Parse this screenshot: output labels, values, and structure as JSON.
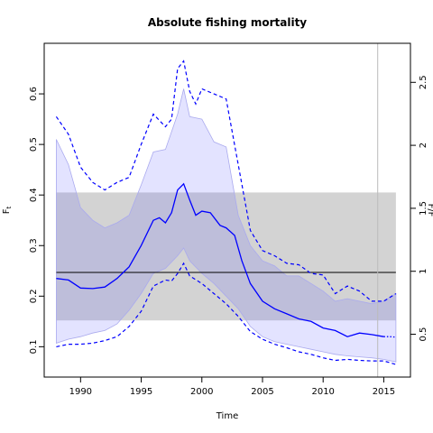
{
  "chart_data": {
    "type": "line",
    "title": "Absolute fishing mortality",
    "xlabel": "Time",
    "ylabel": "F",
    "ylabel_sub": "t",
    "y2label": "F/F",
    "xlim": [
      1987,
      2017.2
    ],
    "ylim": [
      0.04,
      0.7
    ],
    "y2lim": [
      0.16,
      2.81
    ],
    "x_ticks": [
      1990,
      1995,
      2000,
      2005,
      2010,
      2015
    ],
    "y_ticks": [
      0.1,
      0.2,
      0.3,
      0.4,
      0.5,
      0.6
    ],
    "y2_ticks": [
      0.5,
      1,
      1.5,
      2,
      2.5
    ],
    "grid": false,
    "colors": {
      "line": "#0000ff",
      "ci_fill": "rgba(80,80,255,0.16)",
      "ci_border": "#aaaaee",
      "ref_band": "#d3d3d3",
      "ref_line": "#000000",
      "vline": "#bbbbbb"
    },
    "reference": {
      "value": 0.247,
      "band": [
        0.152,
        0.405
      ],
      "band_x": [
        1988,
        2016
      ]
    },
    "last_obs_x": 2014.5,
    "series": [
      {
        "role": "estimate",
        "x": [
          1988,
          1989,
          1990,
          1991,
          1992,
          1993,
          1994,
          1995,
          1996,
          1996.5,
          1997,
          1997.5,
          1998,
          1998.5,
          1999,
          1999.5,
          2000,
          2000.7,
          2001.5,
          2002,
          2002.7,
          2003.3,
          2004,
          2005,
          2006,
          2007,
          2008,
          2009,
          2010,
          2011,
          2012,
          2013,
          2014,
          2015
        ],
        "y": [
          0.235,
          0.232,
          0.216,
          0.215,
          0.218,
          0.235,
          0.258,
          0.3,
          0.35,
          0.355,
          0.345,
          0.365,
          0.41,
          0.422,
          0.39,
          0.36,
          0.368,
          0.365,
          0.34,
          0.335,
          0.32,
          0.27,
          0.225,
          0.19,
          0.175,
          0.165,
          0.155,
          0.15,
          0.137,
          0.132,
          0.12,
          0.127,
          0.124,
          0.12
        ]
      },
      {
        "role": "forecast",
        "x": [
          2015,
          2015.5,
          2016
        ],
        "y": [
          0.12,
          0.12,
          0.119
        ]
      },
      {
        "role": "ci_upper",
        "x": [
          1988,
          1989,
          1990,
          1991,
          1992,
          1993,
          1994,
          1995,
          1996,
          1997,
          1997.5,
          1998,
          1998.5,
          1999,
          1999.5,
          2000,
          2001,
          2002,
          2003,
          2004,
          2005,
          2006,
          2007,
          2008,
          2009,
          2010,
          2011,
          2012,
          2013,
          2014,
          2015,
          2016
        ],
        "y": [
          0.555,
          0.52,
          0.455,
          0.425,
          0.41,
          0.425,
          0.435,
          0.5,
          0.56,
          0.535,
          0.55,
          0.65,
          0.665,
          0.605,
          0.58,
          0.61,
          0.6,
          0.59,
          0.46,
          0.33,
          0.29,
          0.28,
          0.265,
          0.262,
          0.245,
          0.242,
          0.205,
          0.22,
          0.21,
          0.19,
          0.19,
          0.205
        ]
      },
      {
        "role": "ci_lower",
        "x": [
          1988,
          1989,
          1990,
          1991,
          1992,
          1993,
          1994,
          1995,
          1996,
          1997,
          1997.5,
          1998,
          1998.5,
          1999,
          2000,
          2001,
          2002,
          2003,
          2004,
          2005,
          2006,
          2007,
          2008,
          2009,
          2010,
          2011,
          2012,
          2013,
          2014,
          2015,
          2016
        ],
        "y": [
          0.1,
          0.105,
          0.105,
          0.107,
          0.112,
          0.12,
          0.14,
          0.17,
          0.22,
          0.232,
          0.23,
          0.245,
          0.265,
          0.24,
          0.225,
          0.205,
          0.185,
          0.16,
          0.13,
          0.115,
          0.105,
          0.098,
          0.09,
          0.085,
          0.078,
          0.073,
          0.075,
          0.073,
          0.072,
          0.072,
          0.065
        ]
      },
      {
        "role": "band_upper",
        "x": [
          1988,
          1989,
          1990,
          1991,
          1992,
          1993,
          1994,
          1995,
          1996,
          1997,
          1998,
          1998.5,
          1999,
          2000,
          2001,
          2002,
          2003,
          2004,
          2005,
          2006,
          2007,
          2008,
          2009,
          2010,
          2011,
          2012,
          2013,
          2014,
          2015,
          2016
        ],
        "y": [
          0.51,
          0.46,
          0.375,
          0.35,
          0.335,
          0.345,
          0.36,
          0.42,
          0.485,
          0.49,
          0.56,
          0.61,
          0.555,
          0.55,
          0.505,
          0.495,
          0.36,
          0.3,
          0.27,
          0.26,
          0.24,
          0.24,
          0.225,
          0.21,
          0.19,
          0.195,
          0.19,
          0.185,
          0.19,
          0.205
        ]
      },
      {
        "role": "band_lower",
        "x": [
          1988,
          1989,
          1990,
          1991,
          1992,
          1993,
          1994,
          1995,
          1996,
          1997,
          1998,
          1998.5,
          1999,
          2000,
          2001,
          2002,
          2003,
          2004,
          2005,
          2006,
          2007,
          2008,
          2009,
          2010,
          2011,
          2012,
          2013,
          2014,
          2015,
          2016
        ],
        "y": [
          0.107,
          0.115,
          0.12,
          0.127,
          0.132,
          0.145,
          0.172,
          0.205,
          0.245,
          0.255,
          0.28,
          0.295,
          0.27,
          0.245,
          0.225,
          0.2,
          0.175,
          0.14,
          0.12,
          0.11,
          0.105,
          0.1,
          0.095,
          0.09,
          0.085,
          0.082,
          0.08,
          0.078,
          0.075,
          0.07
        ]
      }
    ]
  }
}
